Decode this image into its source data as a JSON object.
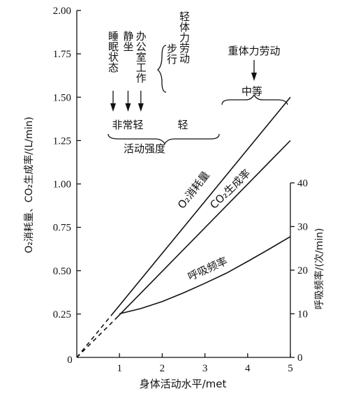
{
  "chart_data": {
    "type": "line",
    "xlabel": "身体活动水平/met",
    "ylabel_left": "O₂消耗量、CO₂生成率/(L/min)",
    "ylabel_right": "呼吸频率/(次/min)",
    "xlim": [
      0,
      5
    ],
    "ylim_left": [
      0,
      2.0
    ],
    "ylim_right": [
      0,
      40
    ],
    "x_ticks": [
      "0",
      "1",
      "2",
      "3",
      "4",
      "5"
    ],
    "y_ticks_left": [
      "0.25",
      "0.50",
      "0.75",
      "1.00",
      "1.25",
      "1.50",
      "1.75",
      "2.00"
    ],
    "y_ticks_right": [
      "0",
      "10",
      "20",
      "30",
      "40"
    ],
    "origin_label": "0",
    "series": [
      {
        "name": "O₂消耗量",
        "axis": "left",
        "x": [
          0,
          0.8,
          5
        ],
        "y": [
          0,
          0.24,
          1.5
        ],
        "dashed_until": 0.8
      },
      {
        "name": "CO₂生成率",
        "axis": "left",
        "x": [
          0,
          0.9,
          5
        ],
        "y": [
          0,
          0.22,
          1.25
        ],
        "dashed_until": 0.9
      },
      {
        "name": "呼吸频率",
        "axis": "right",
        "x": [
          1,
          1.5,
          2,
          2.5,
          3,
          3.5,
          4,
          4.5,
          5
        ],
        "y": [
          10,
          11.2,
          12.8,
          14.8,
          17,
          19.3,
          22,
          24.8,
          27.7
        ]
      }
    ],
    "activity_markers": [
      {
        "label": "睡眠状态",
        "x": 0.85
      },
      {
        "label": "静坐",
        "x": 1.2
      },
      {
        "label": "办公室工作",
        "x": 1.5
      }
    ],
    "activity_text": {
      "walk": "步行",
      "light_work": "轻体力劳动",
      "heavy_work": "重体力劳动",
      "very_light": "非常轻",
      "light": "轻",
      "moderate": "中等",
      "intensity": "活动强度"
    }
  }
}
